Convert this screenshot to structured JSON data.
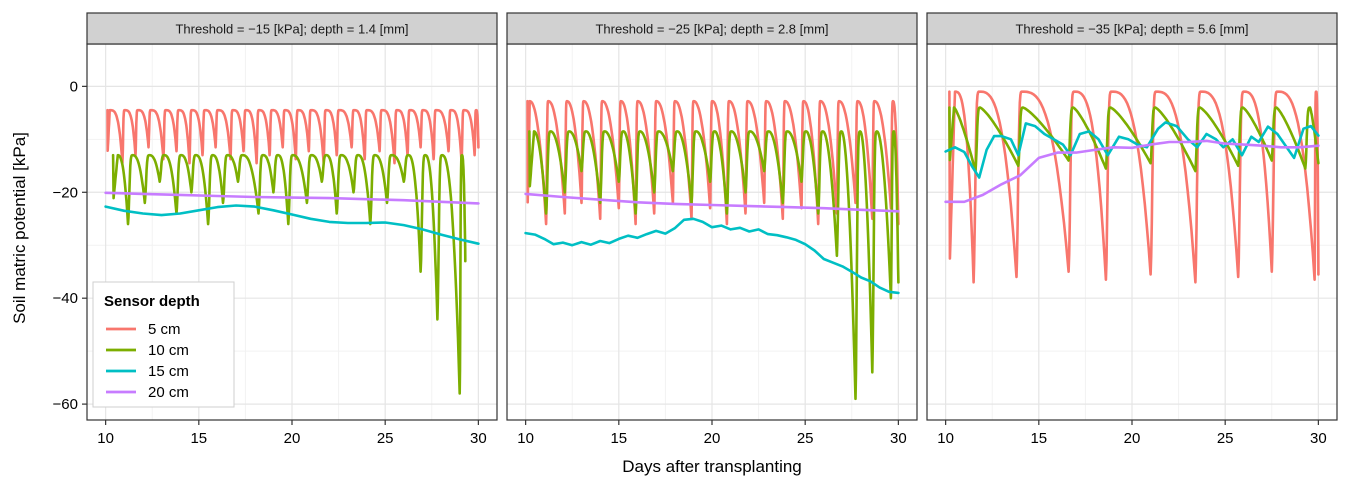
{
  "chart_data": {
    "type": "line",
    "xlabel": "Days after transplanting",
    "ylabel": "Soil matric potential [kPa]",
    "xlim": [
      9,
      31
    ],
    "ylim": [
      -63,
      8
    ],
    "xticks": [
      10,
      15,
      20,
      25,
      30
    ],
    "yticks": [
      0,
      -20,
      -40,
      -60
    ],
    "ytick_labels": [
      "0",
      "−20",
      "−40",
      "−60"
    ],
    "grid": true,
    "legend": {
      "title": "Sensor depth",
      "placement": "bottom-left of first panel",
      "entries": [
        "5 cm",
        "10 cm",
        "15 cm",
        "20 cm"
      ]
    },
    "series_colors": {
      "5 cm": "#F8766D",
      "10 cm": "#7CAE00",
      "15 cm": "#00BFC4",
      "20 cm": "#C77CFF"
    },
    "panels": [
      {
        "strip": "Threshold = −15 [kPa]; depth = 1.4 [mm]",
        "series": [
          {
            "name": "5 cm",
            "events": [
              10.1,
              10.9,
              11.6,
              12.3,
              13.1,
              13.8,
              14.5,
              15.2,
              15.9,
              16.7,
              17.4,
              18.1,
              18.8,
              19.5,
              20.2,
              20.9,
              21.7,
              22.4,
              23.2,
              23.9,
              24.7,
              25.5,
              26.2,
              26.9,
              27.6,
              28.4,
              29.1,
              29.8
            ],
            "peak": -4.5,
            "trough": -13.0,
            "trough_var": 1.5,
            "recover": 0.12,
            "dry_k": 3.5,
            "x_end": 30
          },
          {
            "name": "10 cm",
            "events": [
              10.4,
              11.2,
              12.1,
              12.9,
              13.8,
              14.6,
              15.5,
              16.3,
              17.1,
              18.2,
              19.0,
              19.8,
              20.8,
              21.6,
              22.4,
              23.3,
              24.2,
              25.1,
              26.0,
              26.9,
              27.8,
              29.0
            ],
            "peak": -13.0,
            "trough": -22.0,
            "trough_var": 4.0,
            "recover": 0.25,
            "dry_k": 2.5,
            "x_end": 29.3,
            "deep_troughs": {
              "18": -35,
              "19": -44,
              "20": -58,
              "21": -33,
              "22": -37,
              "23": -35,
              "24": -45,
              "25": -52,
              "26": -55,
              "27": -58,
              "28": -60
            }
          },
          {
            "name": "15 cm",
            "points": [
              [
                10,
                -22.7
              ],
              [
                11,
                -23.5
              ],
              [
                12,
                -24.0
              ],
              [
                13,
                -24.3
              ],
              [
                14,
                -24.0
              ],
              [
                15,
                -23.4
              ],
              [
                16,
                -22.8
              ],
              [
                17,
                -22.5
              ],
              [
                18,
                -22.7
              ],
              [
                19,
                -23.4
              ],
              [
                20,
                -24.2
              ],
              [
                21,
                -25.0
              ],
              [
                22,
                -25.6
              ],
              [
                23,
                -25.8
              ],
              [
                24,
                -25.8
              ],
              [
                25,
                -25.7
              ],
              [
                26,
                -26.2
              ],
              [
                27,
                -27.0
              ],
              [
                28,
                -28.0
              ],
              [
                29,
                -28.9
              ],
              [
                30,
                -29.7
              ]
            ]
          },
          {
            "name": "20 cm",
            "points": [
              [
                10,
                -20.1
              ],
              [
                12,
                -20.3
              ],
              [
                14,
                -20.5
              ],
              [
                16,
                -20.7
              ],
              [
                18,
                -20.9
              ],
              [
                20,
                -21.0
              ],
              [
                22,
                -21.1
              ],
              [
                24,
                -21.3
              ],
              [
                26,
                -21.5
              ],
              [
                28,
                -21.8
              ],
              [
                30,
                -22.1
              ]
            ]
          }
        ]
      },
      {
        "strip": "Threshold = −25 [kPa]; depth = 2.8 [mm]",
        "series": [
          {
            "name": "5 cm",
            "events": [
              10.1,
              11.1,
              12.1,
              13.0,
              14.0,
              15.0,
              15.9,
              16.9,
              17.9,
              18.9,
              19.9,
              20.8,
              21.8,
              22.8,
              23.8,
              24.8,
              25.7,
              26.7,
              27.7,
              28.6,
              29.6
            ],
            "peak": -2.8,
            "trough": -24.0,
            "trough_var": 2.0,
            "recover": 0.12,
            "dry_k": 2.2,
            "x_end": 30
          },
          {
            "name": "10 cm",
            "events": [
              10.2,
              11.1,
              12.1,
              13.0,
              14.0,
              15.0,
              15.9,
              16.9,
              17.9,
              18.9,
              19.9,
              20.8,
              21.8,
              22.8,
              23.8,
              24.8,
              25.7,
              26.7,
              27.7,
              28.6,
              29.6
            ],
            "peak": -8.5,
            "trough": -20.0,
            "trough_var": 4.0,
            "recover": 0.25,
            "dry_k": 2.0,
            "x_end": 30,
            "deep_troughs": {
              "16": -32,
              "17": -59,
              "18": -54,
              "19": -40,
              "20": -37
            }
          },
          {
            "name": "15 cm",
            "points": [
              [
                10,
                -27.7
              ],
              [
                10.5,
                -28.0
              ],
              [
                11,
                -28.8
              ],
              [
                11.5,
                -29.8
              ],
              [
                12,
                -29.5
              ],
              [
                12.5,
                -30.0
              ],
              [
                13,
                -29.4
              ],
              [
                13.5,
                -29.9
              ],
              [
                14,
                -29.2
              ],
              [
                14.5,
                -29.6
              ],
              [
                15,
                -28.8
              ],
              [
                15.5,
                -28.2
              ],
              [
                16,
                -28.6
              ],
              [
                16.5,
                -27.9
              ],
              [
                17,
                -27.3
              ],
              [
                17.5,
                -27.8
              ],
              [
                18,
                -26.8
              ],
              [
                18.5,
                -25.2
              ],
              [
                19,
                -25.0
              ],
              [
                19.5,
                -25.6
              ],
              [
                20,
                -26.6
              ],
              [
                20.5,
                -26.3
              ],
              [
                21,
                -27.0
              ],
              [
                21.5,
                -26.7
              ],
              [
                22,
                -27.4
              ],
              [
                22.5,
                -27.0
              ],
              [
                23,
                -27.9
              ],
              [
                23.5,
                -28.1
              ],
              [
                24,
                -28.5
              ],
              [
                24.5,
                -29.0
              ],
              [
                25,
                -29.8
              ],
              [
                25.5,
                -31.0
              ],
              [
                26,
                -32.6
              ],
              [
                26.5,
                -33.3
              ],
              [
                27,
                -34.0
              ],
              [
                27.5,
                -35.0
              ],
              [
                28,
                -36.1
              ],
              [
                28.5,
                -36.8
              ],
              [
                29,
                -38.0
              ],
              [
                29.5,
                -38.8
              ],
              [
                30,
                -39.0
              ]
            ]
          },
          {
            "name": "20 cm",
            "points": [
              [
                10,
                -20.3
              ],
              [
                12,
                -20.9
              ],
              [
                14,
                -21.4
              ],
              [
                16,
                -21.9
              ],
              [
                18,
                -22.2
              ],
              [
                20,
                -22.4
              ],
              [
                22,
                -22.6
              ],
              [
                24,
                -22.8
              ],
              [
                26,
                -23.0
              ],
              [
                28,
                -23.3
              ],
              [
                30,
                -23.6
              ]
            ]
          }
        ]
      },
      {
        "strip": "Threshold = −35 [kPa]; depth = 5.6 [mm]",
        "series": [
          {
            "name": "5 cm",
            "events": [
              10.2,
              11.5,
              13.8,
              16.6,
              18.6,
              21.0,
              23.4,
              25.7,
              27.5,
              29.8
            ],
            "peak": -1.0,
            "trough": -36.0,
            "trough_var": 1.0,
            "recover": 0.3,
            "dry_k": 3.0,
            "x_end": 30
          },
          {
            "name": "10 cm",
            "events": [
              10.2,
              11.6,
              13.9,
              16.6,
              18.6,
              21.0,
              23.4,
              25.7,
              27.5,
              29.3
            ],
            "peak": -4.0,
            "trough": -15.0,
            "trough_var": 1.0,
            "recover": 0.25,
            "dry_k": 1.3,
            "x_end": 30
          },
          {
            "name": "15 cm",
            "points": [
              [
                10,
                -12.3
              ],
              [
                10.5,
                -11.5
              ],
              [
                11,
                -12.4
              ],
              [
                11.4,
                -15.0
              ],
              [
                11.8,
                -17.2
              ],
              [
                12.2,
                -12.0
              ],
              [
                12.6,
                -9.4
              ],
              [
                13.0,
                -9.4
              ],
              [
                13.5,
                -10.0
              ],
              [
                13.9,
                -13.0
              ],
              [
                14.3,
                -7.0
              ],
              [
                14.8,
                -7.5
              ],
              [
                15.3,
                -9.0
              ],
              [
                15.8,
                -10.0
              ],
              [
                16.3,
                -11.0
              ],
              [
                16.7,
                -13.0
              ],
              [
                17.2,
                -9.0
              ],
              [
                17.7,
                -8.5
              ],
              [
                18.2,
                -10.0
              ],
              [
                18.7,
                -13.0
              ],
              [
                19.3,
                -9.5
              ],
              [
                19.8,
                -10.0
              ],
              [
                20.3,
                -11.0
              ],
              [
                20.8,
                -11.5
              ],
              [
                21.4,
                -8.0
              ],
              [
                21.8,
                -6.8
              ],
              [
                22.4,
                -7.5
              ],
              [
                23.0,
                -10.0
              ],
              [
                23.5,
                -11.5
              ],
              [
                24.0,
                -9.0
              ],
              [
                24.5,
                -10.0
              ],
              [
                24.9,
                -11.5
              ],
              [
                25.4,
                -10.0
              ],
              [
                25.9,
                -13.0
              ],
              [
                26.4,
                -9.5
              ],
              [
                26.8,
                -10.5
              ],
              [
                27.3,
                -7.6
              ],
              [
                27.8,
                -9.0
              ],
              [
                28.2,
                -11.0
              ],
              [
                28.7,
                -13.5
              ],
              [
                29.2,
                -8.0
              ],
              [
                29.6,
                -7.5
              ],
              [
                30,
                -9.3
              ]
            ]
          },
          {
            "name": "20 cm",
            "points": [
              [
                10,
                -21.8
              ],
              [
                11,
                -21.8
              ],
              [
                12,
                -20.5
              ],
              [
                13,
                -18.5
              ],
              [
                14,
                -16.8
              ],
              [
                15,
                -13.5
              ],
              [
                16,
                -12.5
              ],
              [
                17,
                -12.5
              ],
              [
                18,
                -12.0
              ],
              [
                19,
                -11.5
              ],
              [
                20,
                -11.6
              ],
              [
                21,
                -11.0
              ],
              [
                22,
                -10.5
              ],
              [
                23,
                -10.5
              ],
              [
                24,
                -10.3
              ],
              [
                25,
                -10.8
              ],
              [
                26,
                -11.0
              ],
              [
                27,
                -11.2
              ],
              [
                28,
                -11.5
              ],
              [
                29,
                -11.5
              ],
              [
                30,
                -11.2
              ]
            ]
          }
        ]
      }
    ]
  }
}
